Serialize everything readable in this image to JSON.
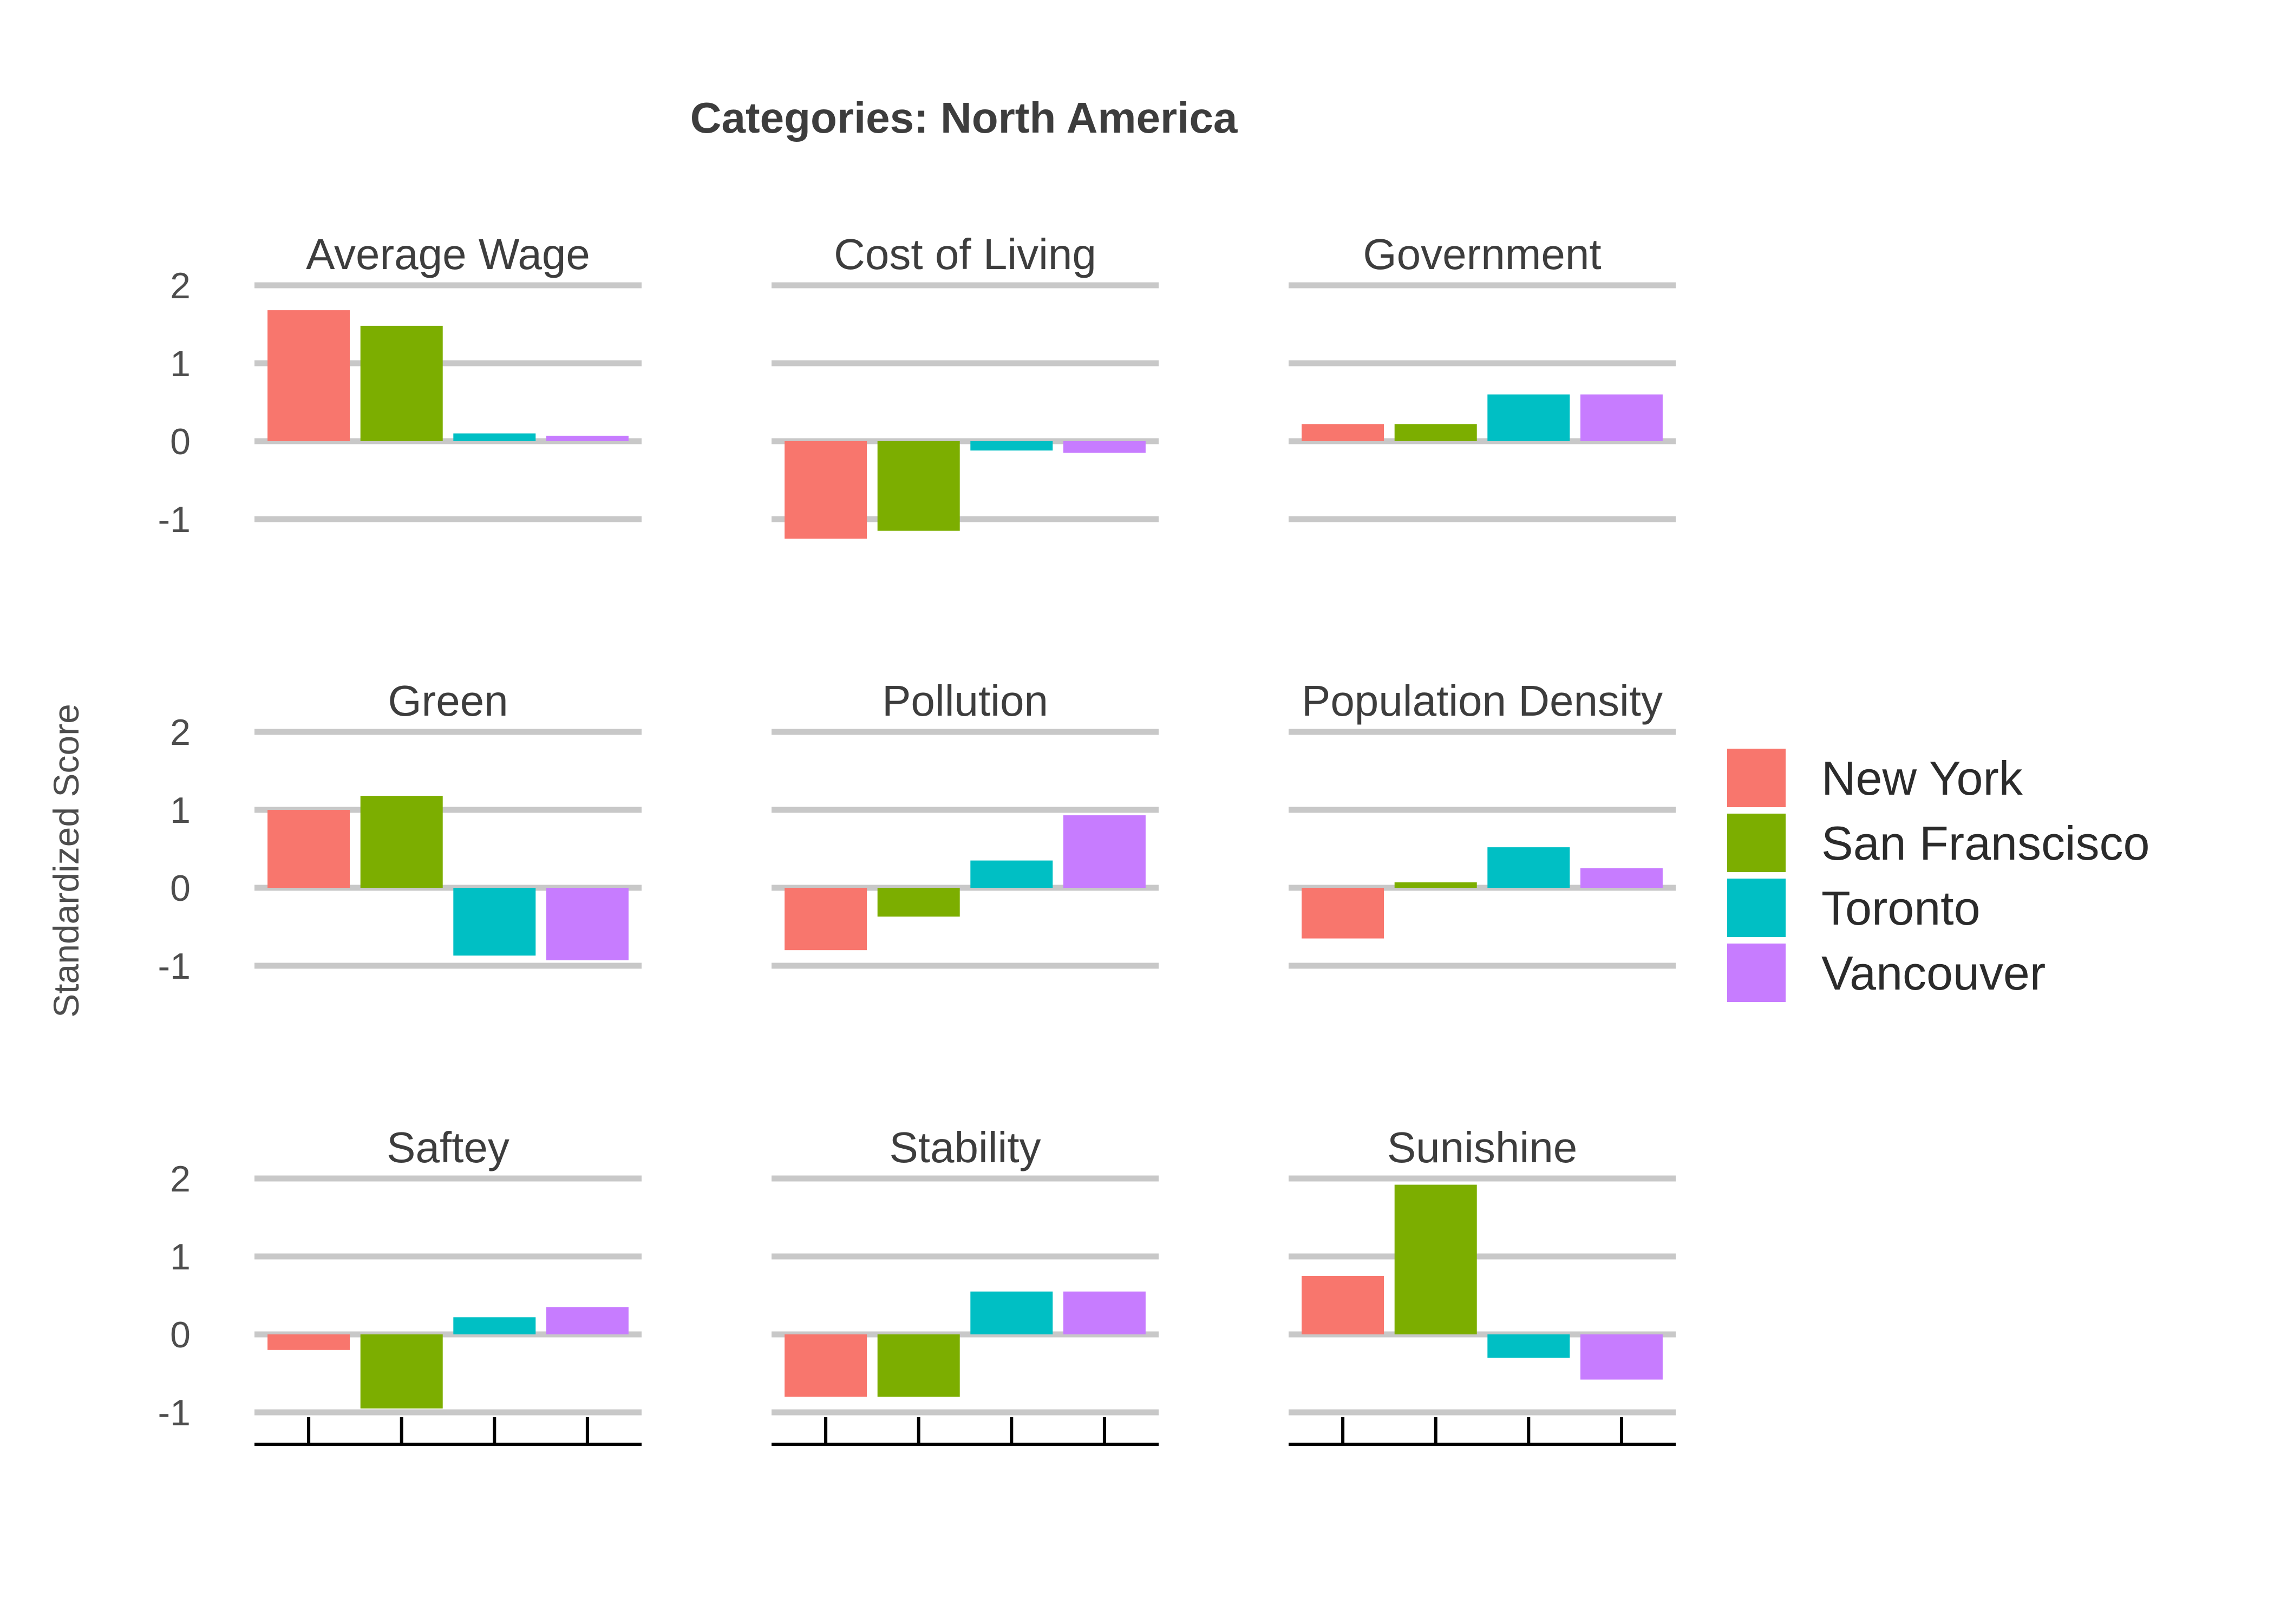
{
  "chart_data": {
    "type": "bar",
    "title": "Categories: North America",
    "ylabel": "Standardized Score",
    "xlabel": "",
    "ylim": [
      -1.25,
      2.3
    ],
    "y_ticks": [
      -1,
      0,
      1,
      2
    ],
    "grid": true,
    "facet_layout": "3x3",
    "legend_position": "right",
    "series": [
      {
        "name": "New York",
        "color": "#F8766D"
      },
      {
        "name": "San Franscisco",
        "color": "#7CAE00"
      },
      {
        "name": "Toronto",
        "color": "#00BFC4"
      },
      {
        "name": "Vancouver",
        "color": "#C77CFF"
      }
    ],
    "panels": [
      {
        "title": "Average Wage",
        "values": [
          1.68,
          1.48,
          0.1,
          0.07
        ]
      },
      {
        "title": "Cost of Living",
        "values": [
          -1.25,
          -1.15,
          -0.12,
          -0.15
        ]
      },
      {
        "title": "Government",
        "values": [
          0.22,
          0.22,
          0.6,
          0.6
        ]
      },
      {
        "title": "Green",
        "values": [
          1.0,
          1.18,
          -0.87,
          -0.93
        ]
      },
      {
        "title": "Pollution",
        "values": [
          -0.8,
          -0.37,
          0.35,
          0.93
        ]
      },
      {
        "title": "Population Density",
        "values": [
          -0.65,
          0.07,
          0.52,
          0.25
        ]
      },
      {
        "title": "Saftey",
        "values": [
          -0.2,
          -0.95,
          0.22,
          0.35
        ]
      },
      {
        "title": "Stability",
        "values": [
          -0.8,
          -0.8,
          0.55,
          0.55
        ]
      },
      {
        "title": "Sunishine",
        "values": [
          0.75,
          1.92,
          -0.3,
          -0.58
        ]
      }
    ]
  }
}
